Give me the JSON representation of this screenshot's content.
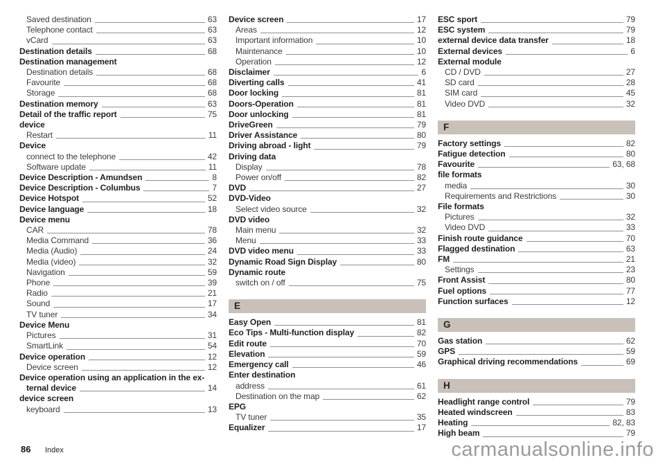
{
  "footer": {
    "page_number": "86",
    "label": "Index",
    "watermark": "carmanualsonline.info"
  },
  "colors": {
    "section_bar": "#c9c1b9",
    "text": "#3a3a3a",
    "bold_text": "#1f1f1f",
    "leader": "#8f8f8f",
    "watermark": "#9b9b9b"
  },
  "index": {
    "columns": [
      {
        "items": [
          {
            "type": "entry",
            "label": "Saved destination",
            "page": "63",
            "indent": 1
          },
          {
            "type": "entry",
            "label": "Telephone contact",
            "page": "63",
            "indent": 1
          },
          {
            "type": "entry",
            "label": "vCard",
            "page": "63",
            "indent": 1
          },
          {
            "type": "entry",
            "label": "Destination details",
            "page": "68",
            "bold": true
          },
          {
            "type": "heading",
            "label": "Destination management"
          },
          {
            "type": "entry",
            "label": "Destination details",
            "page": "68",
            "indent": 1
          },
          {
            "type": "entry",
            "label": "Favourite",
            "page": "68",
            "indent": 1
          },
          {
            "type": "entry",
            "label": "Storage",
            "page": "68",
            "indent": 1
          },
          {
            "type": "entry",
            "label": "Destination memory",
            "page": "63",
            "bold": true
          },
          {
            "type": "entry",
            "label": "Detail of the traffic report",
            "page": "75",
            "bold": true
          },
          {
            "type": "heading",
            "label": "device"
          },
          {
            "type": "entry",
            "label": "Restart",
            "page": "11",
            "indent": 1
          },
          {
            "type": "heading",
            "label": "Device"
          },
          {
            "type": "entry",
            "label": "connect to the telephone",
            "page": "42",
            "indent": 1
          },
          {
            "type": "entry",
            "label": "Software update",
            "page": "11",
            "indent": 1
          },
          {
            "type": "entry",
            "label": "Device Description - Amundsen",
            "page": "8",
            "bold": true
          },
          {
            "type": "entry",
            "label": "Device Description - Columbus",
            "page": "7",
            "bold": true
          },
          {
            "type": "entry",
            "label": "Device Hotspot",
            "page": "52",
            "bold": true
          },
          {
            "type": "entry",
            "label": "Device language",
            "page": "18",
            "bold": true
          },
          {
            "type": "heading",
            "label": "Device menu"
          },
          {
            "type": "entry",
            "label": "CAR",
            "page": "78",
            "indent": 1
          },
          {
            "type": "entry",
            "label": "Media Command",
            "page": "36",
            "indent": 1
          },
          {
            "type": "entry",
            "label": "Media (Audio)",
            "page": "24",
            "indent": 1
          },
          {
            "type": "entry",
            "label": "Media (video)",
            "page": "32",
            "indent": 1
          },
          {
            "type": "entry",
            "label": "Navigation",
            "page": "59",
            "indent": 1
          },
          {
            "type": "entry",
            "label": "Phone",
            "page": "39",
            "indent": 1
          },
          {
            "type": "entry",
            "label": "Radio",
            "page": "21",
            "indent": 1
          },
          {
            "type": "entry",
            "label": "Sound",
            "page": "17",
            "indent": 1
          },
          {
            "type": "entry",
            "label": "TV tuner",
            "page": "34",
            "indent": 1
          },
          {
            "type": "heading",
            "label": "Device Menu"
          },
          {
            "type": "entry",
            "label": "Pictures",
            "page": "31",
            "indent": 1
          },
          {
            "type": "entry",
            "label": "SmartLink",
            "page": "54",
            "indent": 1
          },
          {
            "type": "entry",
            "label": "Device operation",
            "page": "12",
            "bold": true
          },
          {
            "type": "entry",
            "label": "Device screen",
            "page": "12",
            "indent": 1
          },
          {
            "type": "heading",
            "label": "Device operation using an application in the ex-"
          },
          {
            "type": "entry",
            "label": "ternal device",
            "page": "14",
            "bold": true,
            "indent": 1
          },
          {
            "type": "heading",
            "label": "device screen"
          },
          {
            "type": "entry",
            "label": "keyboard",
            "page": "13",
            "indent": 1
          }
        ]
      },
      {
        "items": [
          {
            "type": "entry",
            "label": "Device screen",
            "page": "17",
            "bold": true
          },
          {
            "type": "entry",
            "label": "Areas",
            "page": "12",
            "indent": 1
          },
          {
            "type": "entry",
            "label": "Important information",
            "page": "10",
            "indent": 1
          },
          {
            "type": "entry",
            "label": "Maintenance",
            "page": "10",
            "indent": 1
          },
          {
            "type": "entry",
            "label": "Operation",
            "page": "12",
            "indent": 1
          },
          {
            "type": "entry",
            "label": "Disclaimer",
            "page": "6",
            "bold": true
          },
          {
            "type": "entry",
            "label": "Diverting calls",
            "page": "41",
            "bold": true
          },
          {
            "type": "entry",
            "label": "Door locking",
            "page": "81",
            "bold": true
          },
          {
            "type": "entry",
            "label": "Doors-Operation",
            "page": "81",
            "bold": true
          },
          {
            "type": "entry",
            "label": "Door unlocking",
            "page": "81",
            "bold": true
          },
          {
            "type": "entry",
            "label": "DriveGreen",
            "page": "79",
            "bold": true
          },
          {
            "type": "entry",
            "label": "Driver Assistance",
            "page": "80",
            "bold": true
          },
          {
            "type": "entry",
            "label": "Driving abroad - light",
            "page": "79",
            "bold": true
          },
          {
            "type": "heading",
            "label": "Driving data"
          },
          {
            "type": "entry",
            "label": "Display",
            "page": "78",
            "indent": 1
          },
          {
            "type": "entry",
            "label": "Power on/off",
            "page": "82",
            "indent": 1
          },
          {
            "type": "entry",
            "label": "DVD",
            "page": "27",
            "bold": true
          },
          {
            "type": "heading",
            "label": "DVD-Video"
          },
          {
            "type": "entry",
            "label": "Select video source",
            "page": "32",
            "indent": 1
          },
          {
            "type": "heading",
            "label": "DVD video"
          },
          {
            "type": "entry",
            "label": "Main menu",
            "page": "32",
            "indent": 1
          },
          {
            "type": "entry",
            "label": "Menu",
            "page": "33",
            "indent": 1
          },
          {
            "type": "entry",
            "label": "DVD video menu",
            "page": "33",
            "bold": true
          },
          {
            "type": "entry",
            "label": "Dynamic Road Sign Display",
            "page": "80",
            "bold": true
          },
          {
            "type": "heading",
            "label": "Dynamic route"
          },
          {
            "type": "entry",
            "label": "switch on / off",
            "page": "75",
            "indent": 1
          },
          {
            "type": "section",
            "label": "E"
          },
          {
            "type": "entry",
            "label": "Easy Open",
            "page": "81",
            "bold": true
          },
          {
            "type": "entry",
            "label": "Eco Tips - Multi-function display",
            "page": "82",
            "bold": true
          },
          {
            "type": "entry",
            "label": "Edit route",
            "page": "70",
            "bold": true
          },
          {
            "type": "entry",
            "label": "Elevation",
            "page": "59",
            "bold": true
          },
          {
            "type": "entry",
            "label": "Emergency call",
            "page": "46",
            "bold": true
          },
          {
            "type": "heading",
            "label": "Enter destination"
          },
          {
            "type": "entry",
            "label": "address",
            "page": "61",
            "indent": 1
          },
          {
            "type": "entry",
            "label": "Destination on the map",
            "page": "62",
            "indent": 1
          },
          {
            "type": "heading",
            "label": "EPG"
          },
          {
            "type": "entry",
            "label": "TV tuner",
            "page": "35",
            "indent": 1
          },
          {
            "type": "entry",
            "label": "Equalizer",
            "page": "17",
            "bold": true
          }
        ]
      },
      {
        "items": [
          {
            "type": "entry",
            "label": "ESC sport",
            "page": "79",
            "bold": true
          },
          {
            "type": "entry",
            "label": "ESC system",
            "page": "79",
            "bold": true
          },
          {
            "type": "entry",
            "label": "external device data transfer",
            "page": "18",
            "bold": true
          },
          {
            "type": "entry",
            "label": "External devices",
            "page": "6",
            "bold": true
          },
          {
            "type": "heading",
            "label": "External module"
          },
          {
            "type": "entry",
            "label": "CD / DVD",
            "page": "27",
            "indent": 1
          },
          {
            "type": "entry",
            "label": "SD card",
            "page": "28",
            "indent": 1
          },
          {
            "type": "entry",
            "label": "SIM card",
            "page": "45",
            "indent": 1
          },
          {
            "type": "entry",
            "label": "Video DVD",
            "page": "32",
            "indent": 1
          },
          {
            "type": "section",
            "label": "F"
          },
          {
            "type": "entry",
            "label": "Factory settings",
            "page": "82",
            "bold": true
          },
          {
            "type": "entry",
            "label": "Fatigue detection",
            "page": "80",
            "bold": true
          },
          {
            "type": "entry",
            "label": "Favourite",
            "page": "63, 68",
            "bold": true
          },
          {
            "type": "heading",
            "label": "file formats"
          },
          {
            "type": "entry",
            "label": "media",
            "page": "30",
            "indent": 1
          },
          {
            "type": "entry",
            "label": "Requirements and Restrictions",
            "page": "30",
            "indent": 1
          },
          {
            "type": "heading",
            "label": "File formats"
          },
          {
            "type": "entry",
            "label": "Pictures",
            "page": "32",
            "indent": 1
          },
          {
            "type": "entry",
            "label": "Video DVD",
            "page": "33",
            "indent": 1
          },
          {
            "type": "entry",
            "label": "Finish route guidance",
            "page": "70",
            "bold": true
          },
          {
            "type": "entry",
            "label": "Flagged destination",
            "page": "63",
            "bold": true
          },
          {
            "type": "entry",
            "label": "FM",
            "page": "21",
            "bold": true
          },
          {
            "type": "entry",
            "label": "Settings",
            "page": "23",
            "indent": 1
          },
          {
            "type": "entry",
            "label": "Front Assist",
            "page": "80",
            "bold": true
          },
          {
            "type": "entry",
            "label": "Fuel options",
            "page": "77",
            "bold": true
          },
          {
            "type": "entry",
            "label": "Function surfaces",
            "page": "12",
            "bold": true
          },
          {
            "type": "section",
            "label": "G"
          },
          {
            "type": "entry",
            "label": "Gas station",
            "page": "62",
            "bold": true
          },
          {
            "type": "entry",
            "label": "GPS",
            "page": "59",
            "bold": true
          },
          {
            "type": "entry",
            "label": "Graphical driving recommendations",
            "page": "69",
            "bold": true
          },
          {
            "type": "section",
            "label": "H"
          },
          {
            "type": "entry",
            "label": "Headlight range control",
            "page": "79",
            "bold": true
          },
          {
            "type": "entry",
            "label": "Heated windscreen",
            "page": "83",
            "bold": true
          },
          {
            "type": "entry",
            "label": "Heating",
            "page": "82, 83",
            "bold": true
          },
          {
            "type": "entry",
            "label": "High beam",
            "page": "79",
            "bold": true
          }
        ]
      }
    ]
  }
}
